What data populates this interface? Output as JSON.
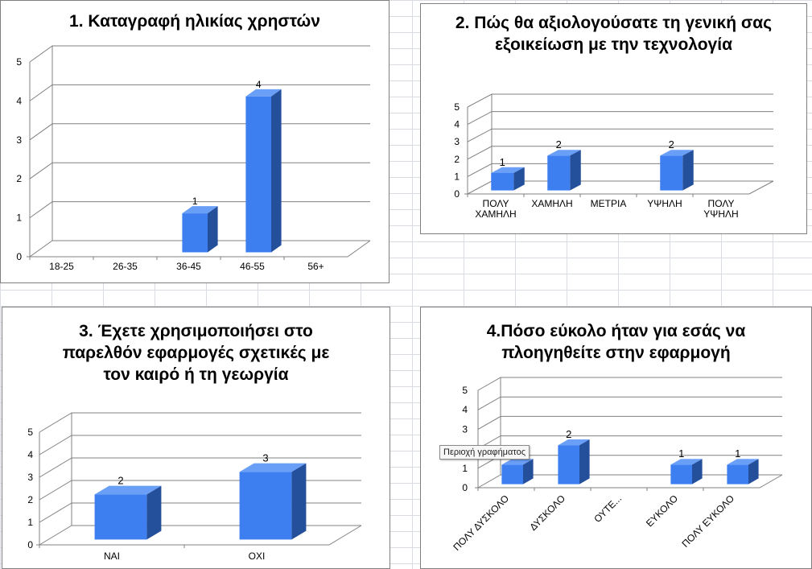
{
  "chart_data": [
    {
      "type": "bar",
      "title": "1. Καταγραφή ηλικίας χρηστών",
      "categories": [
        "18-25",
        "26-35",
        "36-45",
        "46-55",
        "56+"
      ],
      "values": [
        0,
        0,
        1,
        4,
        0
      ],
      "ylim": [
        0,
        5
      ],
      "yticks": [
        "0",
        "1",
        "2",
        "3",
        "4",
        "5"
      ],
      "grid": true,
      "legend": "none",
      "data_labels": [
        "",
        "",
        "1",
        "4",
        ""
      ]
    },
    {
      "type": "bar",
      "title": "2. Πώς θα αξιολογούσατε τη γενική σας εξοικείωση με την τεχνολογία",
      "categories": [
        "ΠΟΛΥ ΧΑΜΗΛΗ",
        "ΧΑΜΗΛΗ",
        "ΜΕΤΡΙΑ",
        "ΥΨΗΛΗ",
        "ΠΟΛΥ ΥΨΗΛΗ"
      ],
      "values": [
        1,
        2,
        0,
        2,
        0
      ],
      "ylim": [
        0,
        5
      ],
      "yticks": [
        "0",
        "1",
        "2",
        "3",
        "4",
        "5"
      ],
      "grid": true,
      "legend": "none",
      "data_labels": [
        "1",
        "2",
        "",
        "2",
        ""
      ]
    },
    {
      "type": "bar",
      "title": "3. Έχετε χρησιμοποιήσει στο παρελθόν εφαρμογές σχετικές με τον καιρό ή τη γεωργία",
      "categories": [
        "ΝΑΙ",
        "ΟΧΙ"
      ],
      "values": [
        2,
        3
      ],
      "ylim": [
        0,
        5
      ],
      "yticks": [
        "0",
        "1",
        "2",
        "3",
        "4",
        "5"
      ],
      "grid": true,
      "legend": "none",
      "data_labels": [
        "2",
        "3"
      ]
    },
    {
      "type": "bar",
      "title": "4.Πόσο εύκολο ήταν για εσάς να πλοηγηθείτε στην εφαρμογή",
      "categories": [
        "ΠΟΛΥ ΔΥΣΚΟΛΟ",
        "ΔΥΣΚΟΛΟ",
        "ΟΥΤΕ...",
        "ΕΥΚΟΛΟ",
        "ΠΟΛΥ ΕΥΚΟΛΟ"
      ],
      "values": [
        1,
        2,
        0,
        1,
        1
      ],
      "ylim": [
        0,
        5
      ],
      "yticks": [
        "0",
        "1",
        "2",
        "3",
        "4",
        "5"
      ],
      "grid": true,
      "legend": "none",
      "data_labels": [
        "1",
        "2",
        "",
        "1",
        "1"
      ],
      "tooltip": "Περιοχή γραφήματος"
    }
  ],
  "colors": {
    "bar_front": "#3d7ff0",
    "bar_side": "#244f9b",
    "bar_top": "#6a9ff7",
    "grid": "#808080"
  }
}
